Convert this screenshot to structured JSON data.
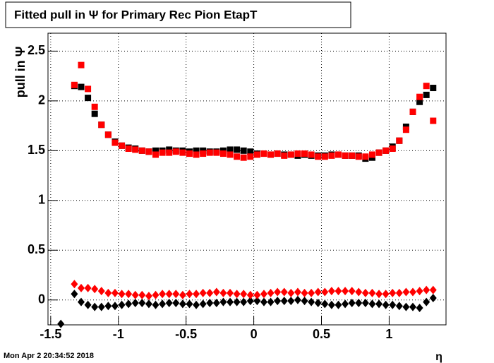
{
  "chart_data": {
    "type": "scatter",
    "title": "Fitted pull in  Ψ  for Primary Rec Pion EtapT",
    "y_label": "pull in Ψ",
    "x_label": "η",
    "footer": "Mon Apr  2 20:34:52 2018",
    "x": [
      -1.425,
      -1.325,
      -1.275,
      -1.225,
      -1.175,
      -1.125,
      -1.075,
      -1.025,
      -0.975,
      -0.925,
      -0.875,
      -0.825,
      -0.775,
      -0.725,
      -0.675,
      -0.625,
      -0.575,
      -0.525,
      -0.475,
      -0.425,
      -0.375,
      -0.325,
      -0.275,
      -0.225,
      -0.175,
      -0.125,
      -0.075,
      -0.025,
      0.025,
      0.075,
      0.125,
      0.175,
      0.225,
      0.275,
      0.325,
      0.375,
      0.425,
      0.475,
      0.525,
      0.575,
      0.625,
      0.675,
      0.725,
      0.775,
      0.825,
      0.875,
      0.925,
      0.975,
      1.025,
      1.075,
      1.125,
      1.175,
      1.225,
      1.275,
      1.325
    ],
    "series": [
      {
        "color": "#000000",
        "marker": "square",
        "values": [
          null,
          2.15,
          2.14,
          2.03,
          1.87,
          1.76,
          1.66,
          1.59,
          1.55,
          1.53,
          1.52,
          1.5,
          1.49,
          1.5,
          1.5,
          1.51,
          1.5,
          1.5,
          1.49,
          1.5,
          1.5,
          1.49,
          1.49,
          1.5,
          1.51,
          1.51,
          1.5,
          1.49,
          1.47,
          1.47,
          1.46,
          1.47,
          1.46,
          1.46,
          1.45,
          1.46,
          1.45,
          1.45,
          1.45,
          1.46,
          1.46,
          1.45,
          1.45,
          1.45,
          1.42,
          1.43,
          1.48,
          1.5,
          1.54,
          1.6,
          1.74,
          1.89,
          1.99,
          2.06,
          2.13
        ]
      },
      {
        "color": "#ff0000",
        "marker": "square",
        "values": [
          null,
          2.16,
          2.36,
          2.12,
          1.94,
          1.76,
          1.66,
          1.58,
          1.55,
          1.52,
          1.51,
          1.5,
          1.49,
          1.46,
          1.48,
          1.48,
          1.49,
          1.48,
          1.47,
          1.46,
          1.47,
          1.48,
          1.48,
          1.47,
          1.46,
          1.44,
          1.43,
          1.44,
          1.46,
          1.47,
          1.46,
          1.47,
          1.45,
          1.46,
          1.47,
          1.47,
          1.46,
          1.44,
          1.44,
          1.45,
          1.46,
          1.45,
          1.45,
          1.44,
          1.44,
          1.46,
          1.48,
          1.5,
          1.52,
          1.6,
          1.71,
          1.89,
          2.04,
          2.15,
          1.8
        ]
      },
      {
        "color": "#000000",
        "marker": "diamond",
        "values": [
          -0.24,
          0.06,
          -0.02,
          -0.05,
          -0.07,
          -0.07,
          -0.06,
          -0.06,
          -0.05,
          -0.04,
          -0.03,
          -0.03,
          -0.04,
          -0.05,
          -0.04,
          -0.03,
          -0.03,
          -0.04,
          -0.04,
          -0.05,
          -0.04,
          -0.03,
          -0.03,
          -0.02,
          -0.02,
          -0.02,
          -0.02,
          -0.01,
          -0.01,
          -0.02,
          -0.02,
          -0.01,
          -0.01,
          -0.01,
          0,
          -0.01,
          -0.02,
          -0.03,
          -0.04,
          -0.05,
          -0.05,
          -0.04,
          -0.03,
          -0.03,
          -0.03,
          -0.04,
          -0.04,
          -0.05,
          -0.05,
          -0.06,
          -0.07,
          -0.07,
          -0.08,
          -0.02,
          0.02
        ]
      },
      {
        "color": "#ff0000",
        "marker": "diamond",
        "values": [
          null,
          0.16,
          0.12,
          0.12,
          0.11,
          0.09,
          0.07,
          0.07,
          0.06,
          0.06,
          0.05,
          0.05,
          0.04,
          0.05,
          0.06,
          0.06,
          0.06,
          0.05,
          0.06,
          0.06,
          0.07,
          0.07,
          0.08,
          0.07,
          0.07,
          0.06,
          0.06,
          0.05,
          0.05,
          0.06,
          0.07,
          0.08,
          0.08,
          0.07,
          0.08,
          0.07,
          0.07,
          0.08,
          0.08,
          0.09,
          0.09,
          0.09,
          0.09,
          0.08,
          0.07,
          0.07,
          0.06,
          0.06,
          0.07,
          0.07,
          0.08,
          0.08,
          0.09,
          0.1,
          0.1
        ]
      }
    ],
    "xlim": [
      -1.52,
      1.42
    ],
    "xticks": [
      -1.5,
      -1,
      -0.5,
      0,
      0.5,
      1
    ],
    "ylim": [
      -0.25,
      2.68
    ],
    "yticks": [
      0,
      0.5,
      1,
      1.5,
      2,
      2.5
    ],
    "grid": true
  }
}
